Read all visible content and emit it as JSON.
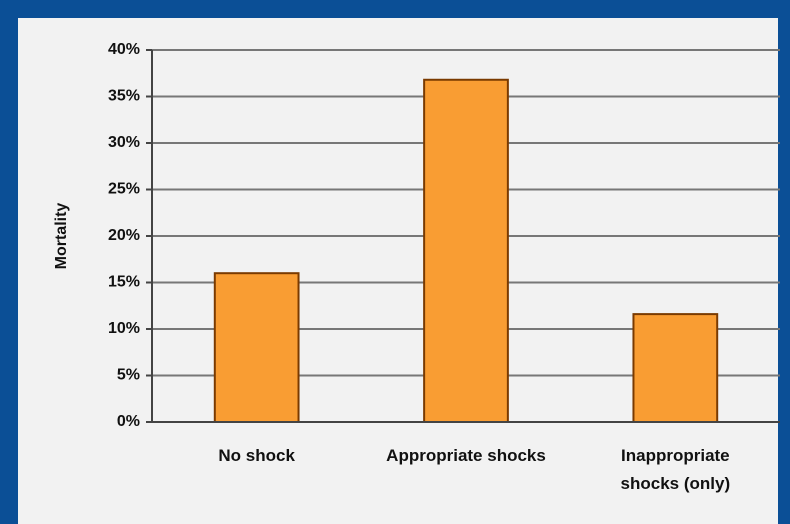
{
  "chart_data": {
    "type": "bar",
    "y_label": "Mortality",
    "categories": [
      "No shock",
      "Appropriate shocks",
      "Inappropriate shocks (only)"
    ],
    "values": [
      16,
      36.8,
      11.6
    ],
    "color": "#f99d33",
    "ylim": [
      0,
      40
    ],
    "yticks": [
      {
        "value": 0,
        "label": "0%"
      },
      {
        "value": 5,
        "label": "5%"
      },
      {
        "value": 10,
        "label": "10%"
      },
      {
        "value": 15,
        "label": "15%"
      },
      {
        "value": 20,
        "label": "20%"
      },
      {
        "value": 25,
        "label": "25%"
      },
      {
        "value": 30,
        "label": "30%"
      },
      {
        "value": 35,
        "label": "35%"
      },
      {
        "value": 40,
        "label": "40%"
      }
    ],
    "grid": true
  }
}
